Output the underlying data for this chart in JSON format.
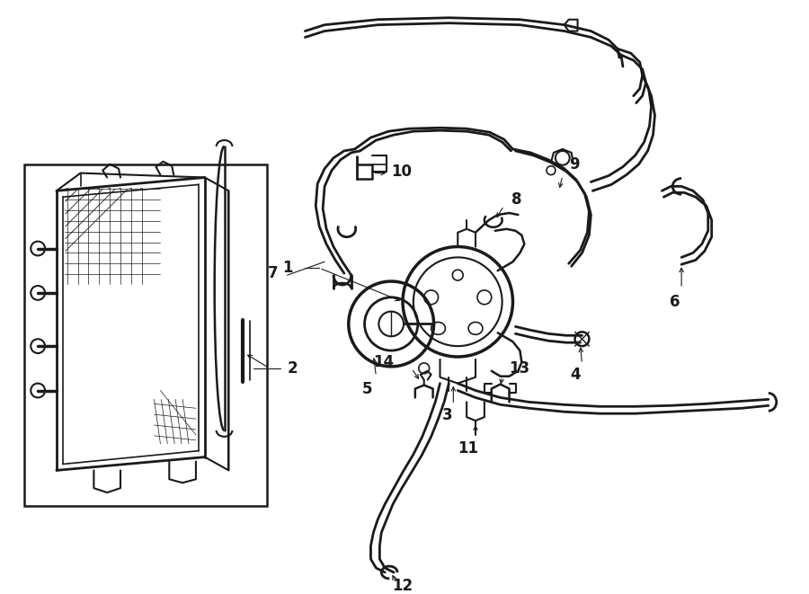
{
  "bg_color": "#ffffff",
  "line_color": "#1a1a1a",
  "fig_width": 9.0,
  "fig_height": 6.61,
  "dpi": 100,
  "font_size": 12
}
